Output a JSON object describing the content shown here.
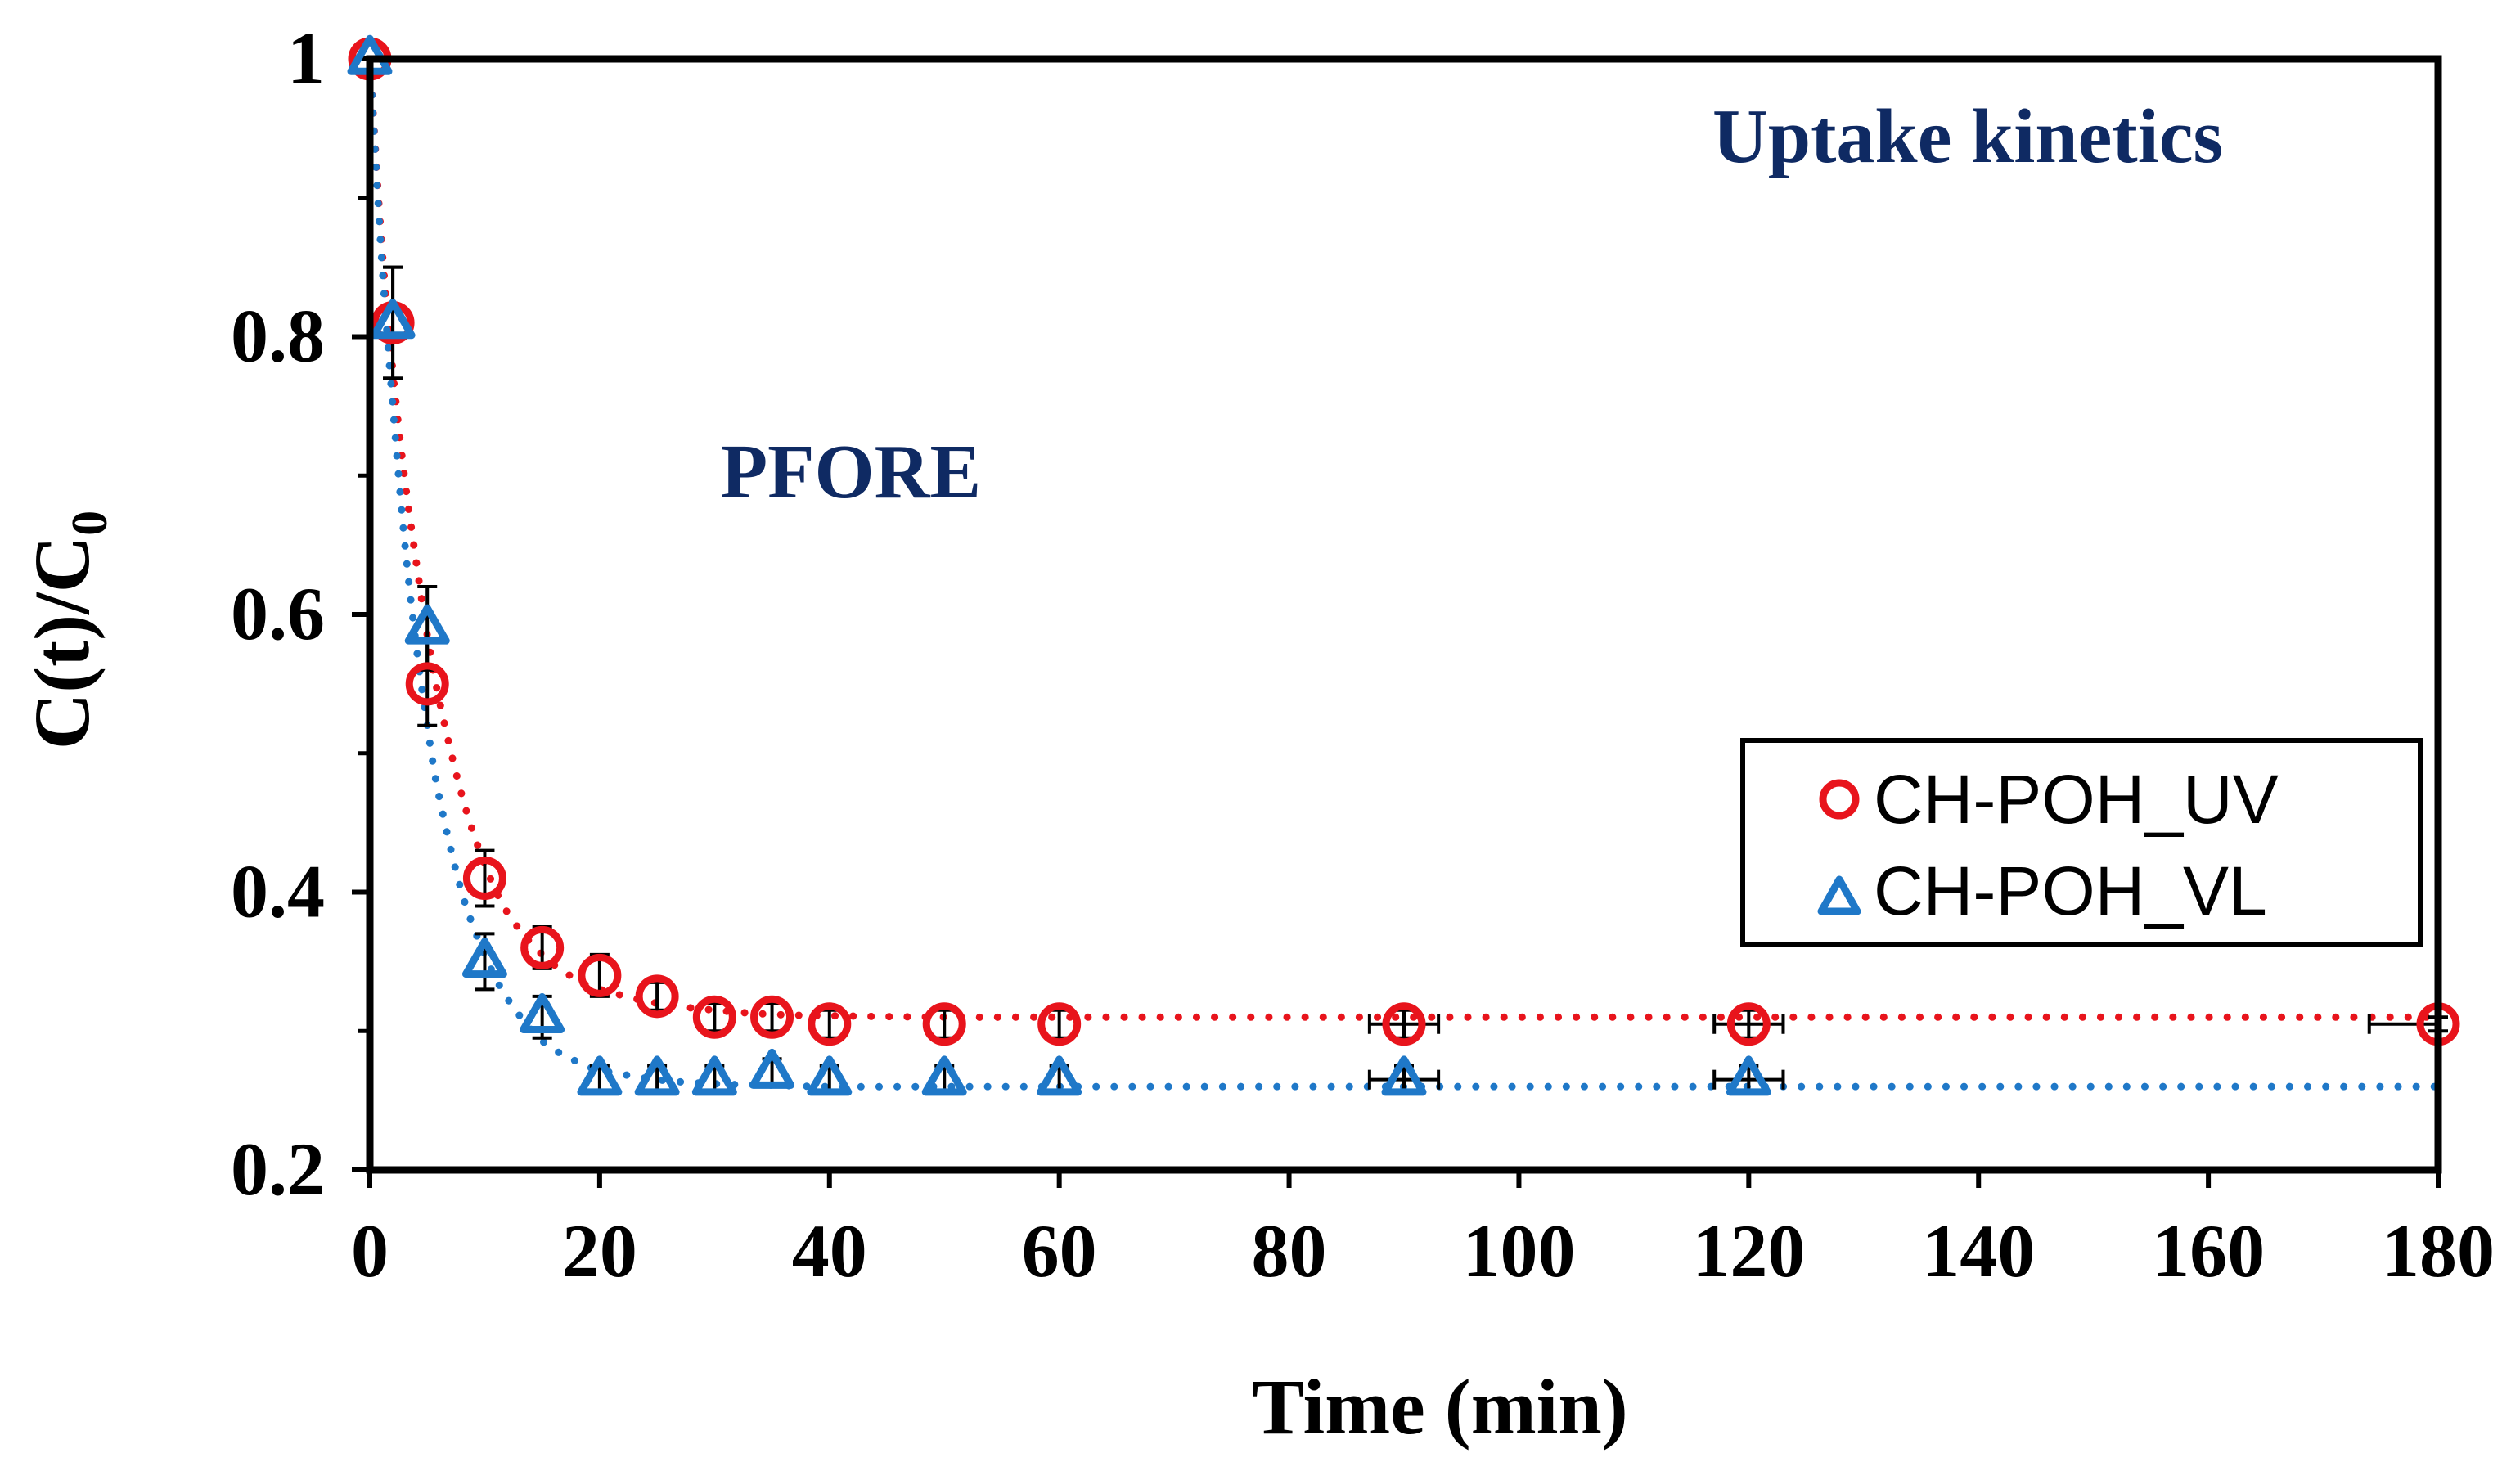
{
  "chart_data": {
    "type": "scatter",
    "title": "Uptake kinetics",
    "annotation": "PFORE",
    "xlabel": "Time (min)",
    "ylabel_main": "C(t)/C",
    "ylabel_sub": "0",
    "xlim": [
      0,
      180
    ],
    "ylim": [
      0.2,
      1.0
    ],
    "xticks": [
      0,
      20,
      40,
      60,
      80,
      100,
      120,
      140,
      160,
      180
    ],
    "xtick_labels": [
      "0",
      "20",
      "40",
      "60",
      "80",
      "100",
      "120",
      "140",
      "160",
      "180"
    ],
    "yticks": [
      0.2,
      0.4,
      0.6,
      0.8,
      1.0
    ],
    "ytick_labels": [
      "0.2",
      "0.4",
      "0.6",
      "0.8",
      "1"
    ],
    "legend_position": "right",
    "series": [
      {
        "name": "CH-POH_UV",
        "marker": "circle",
        "color": "#e8141c",
        "x": [
          0,
          2,
          5,
          10,
          15,
          20,
          25,
          30,
          35,
          40,
          50,
          60,
          90,
          120,
          180
        ],
        "y": [
          1.0,
          0.81,
          0.55,
          0.41,
          0.36,
          0.34,
          0.325,
          0.31,
          0.31,
          0.305,
          0.305,
          0.305,
          0.305,
          0.305,
          0.305
        ],
        "xerr": [
          0,
          0,
          0,
          0,
          0,
          0,
          0,
          0,
          0,
          0,
          0,
          0,
          3,
          3,
          6
        ],
        "yerr": [
          0,
          0.04,
          0.03,
          0.02,
          0.015,
          0.015,
          0.01,
          0.01,
          0.01,
          0.01,
          0.01,
          0.01,
          0.01,
          0.01,
          0.005
        ],
        "fit_x": [
          0,
          1,
          2,
          3,
          4,
          5,
          6,
          8,
          10,
          12,
          15,
          18,
          20,
          25,
          30,
          35,
          40,
          50,
          60,
          90,
          120,
          150,
          180
        ],
        "fit_y": [
          1.0,
          0.87,
          0.775,
          0.7,
          0.64,
          0.585,
          0.54,
          0.47,
          0.42,
          0.385,
          0.355,
          0.337,
          0.33,
          0.32,
          0.315,
          0.312,
          0.311,
          0.31,
          0.31,
          0.31,
          0.31,
          0.31,
          0.31
        ]
      },
      {
        "name": "CH-POH_VL",
        "marker": "triangle",
        "color": "#1f78c8",
        "x": [
          0,
          2,
          5,
          10,
          15,
          20,
          25,
          30,
          35,
          40,
          50,
          60,
          90,
          120
        ],
        "y": [
          1.0,
          0.81,
          0.59,
          0.35,
          0.31,
          0.265,
          0.265,
          0.265,
          0.27,
          0.265,
          0.265,
          0.265,
          0.265,
          0.265
        ],
        "xerr": [
          0,
          0,
          0,
          0,
          0,
          0,
          0,
          0,
          0,
          0,
          0,
          0,
          3,
          3
        ],
        "yerr": [
          0,
          0.04,
          0.03,
          0.02,
          0.015,
          0.01,
          0.01,
          0.01,
          0.01,
          0.01,
          0.01,
          0.01,
          0.01,
          0.01
        ],
        "fit_x": [
          0,
          1,
          2,
          3,
          4,
          5,
          6,
          8,
          10,
          12,
          15,
          18,
          20,
          25,
          30,
          35,
          40,
          50,
          60,
          90,
          120,
          150,
          180
        ],
        "fit_y": [
          1.0,
          0.86,
          0.75,
          0.655,
          0.58,
          0.52,
          0.47,
          0.4,
          0.355,
          0.323,
          0.293,
          0.278,
          0.272,
          0.265,
          0.262,
          0.261,
          0.26,
          0.26,
          0.26,
          0.26,
          0.26,
          0.26,
          0.26
        ]
      }
    ]
  }
}
